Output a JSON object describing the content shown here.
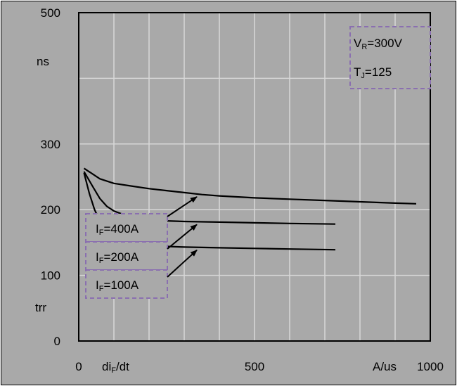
{
  "chart_data": {
    "type": "line",
    "xlim": [
      0,
      1000
    ],
    "ylim": [
      0,
      500
    ],
    "x_ticks": [
      "0",
      "500",
      "1000"
    ],
    "y_ticks": [
      "0",
      "100",
      "200",
      "300",
      "500"
    ],
    "ylabel_unit": "ns",
    "ylabel": "trr",
    "xlabel": {
      "base": "di",
      "sub": "F",
      "rest": "/dt"
    },
    "xunit": "A/us",
    "conditions": {
      "vr": {
        "base": "V",
        "sub": "R",
        "rest": "=300V"
      },
      "tj": {
        "base": "T",
        "sub": "J",
        "rest": "=125"
      }
    },
    "series": [
      {
        "label": {
          "base": "I",
          "sub": "F",
          "rest": "=400A"
        },
        "x": [
          15,
          60,
          100,
          150,
          200,
          250,
          300,
          350,
          400,
          500,
          600,
          700,
          800,
          900,
          960
        ],
        "y": [
          263,
          247,
          240,
          236,
          232,
          229,
          226,
          223,
          221,
          218,
          216,
          214,
          212,
          210,
          209
        ]
      },
      {
        "label": {
          "base": "I",
          "sub": "F",
          "rest": "=200A"
        },
        "x": [
          15,
          40,
          60,
          80,
          100,
          130,
          160,
          200,
          250,
          300,
          400,
          500,
          600,
          730
        ],
        "y": [
          258,
          235,
          217,
          205,
          198,
          192,
          188,
          185,
          183,
          182,
          181,
          180,
          179,
          178
        ]
      },
      {
        "label": {
          "base": "I",
          "sub": "F",
          "rest": "=100A"
        },
        "x": [
          15,
          30,
          45,
          60,
          80,
          100,
          120,
          150,
          180,
          210,
          250,
          300,
          400,
          500,
          600,
          730
        ],
        "y": [
          256,
          225,
          200,
          183,
          170,
          161,
          155,
          150,
          147,
          145,
          144,
          143,
          142,
          141,
          140,
          139
        ]
      }
    ]
  }
}
